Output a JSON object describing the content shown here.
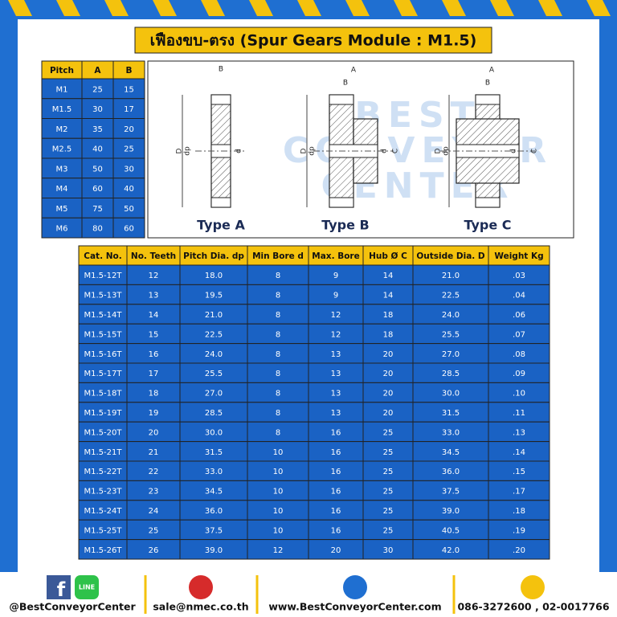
{
  "header": {
    "title": "เฟืองขบ-ตรง (Spur Gears Module : M1.5)"
  },
  "pitch_table": {
    "columns": [
      "Pitch",
      "A",
      "B"
    ],
    "rows": [
      [
        "M1",
        "25",
        "15"
      ],
      [
        "M1.5",
        "30",
        "17"
      ],
      [
        "M2",
        "35",
        "20"
      ],
      [
        "M2.5",
        "40",
        "25"
      ],
      [
        "M3",
        "50",
        "30"
      ],
      [
        "M4",
        "60",
        "40"
      ],
      [
        "M5",
        "75",
        "50"
      ],
      [
        "M6",
        "80",
        "60"
      ]
    ]
  },
  "diagram": {
    "watermark": [
      "BEST",
      "CONVEYOR",
      "CENTER"
    ],
    "types": [
      {
        "label": "Type A",
        "dims": [
          "B",
          "D",
          "dp",
          "d"
        ]
      },
      {
        "label": "Type B",
        "dims": [
          "A",
          "B",
          "D",
          "dp",
          "d",
          "C"
        ]
      },
      {
        "label": "Type C",
        "dims": [
          "A",
          "B",
          "D",
          "dp",
          "d",
          "C"
        ]
      }
    ]
  },
  "spec_table": {
    "columns": [
      "Cat. No.",
      "No. Teeth",
      "Pitch Dia. dp",
      "Min Bore d",
      "Max. Bore",
      "Hub Ø C",
      "Outside Dia. D",
      "Weight Kg"
    ],
    "rows": [
      [
        "M1.5-12T",
        "12",
        "18.0",
        "8",
        "9",
        "14",
        "21.0",
        ".03"
      ],
      [
        "M1.5-13T",
        "13",
        "19.5",
        "8",
        "9",
        "14",
        "22.5",
        ".04"
      ],
      [
        "M1.5-14T",
        "14",
        "21.0",
        "8",
        "12",
        "18",
        "24.0",
        ".06"
      ],
      [
        "M1.5-15T",
        "15",
        "22.5",
        "8",
        "12",
        "18",
        "25.5",
        ".07"
      ],
      [
        "M1.5-16T",
        "16",
        "24.0",
        "8",
        "13",
        "20",
        "27.0",
        ".08"
      ],
      [
        "M1.5-17T",
        "17",
        "25.5",
        "8",
        "13",
        "20",
        "28.5",
        ".09"
      ],
      [
        "M1.5-18T",
        "18",
        "27.0",
        "8",
        "13",
        "20",
        "30.0",
        ".10"
      ],
      [
        "M1.5-19T",
        "19",
        "28.5",
        "8",
        "13",
        "20",
        "31.5",
        ".11"
      ],
      [
        "M1.5-20T",
        "20",
        "30.0",
        "8",
        "16",
        "25",
        "33.0",
        ".13"
      ],
      [
        "M1.5-21T",
        "21",
        "31.5",
        "10",
        "16",
        "25",
        "34.5",
        ".14"
      ],
      [
        "M1.5-22T",
        "22",
        "33.0",
        "10",
        "16",
        "25",
        "36.0",
        ".15"
      ],
      [
        "M1.5-23T",
        "23",
        "34.5",
        "10",
        "16",
        "25",
        "37.5",
        ".17"
      ],
      [
        "M1.5-24T",
        "24",
        "36.0",
        "10",
        "16",
        "25",
        "39.0",
        ".18"
      ],
      [
        "M1.5-25T",
        "25",
        "37.5",
        "10",
        "16",
        "25",
        "40.5",
        ".19"
      ],
      [
        "M1.5-26T",
        "26",
        "39.0",
        "12",
        "20",
        "30",
        "42.0",
        ".20"
      ]
    ]
  },
  "footer": {
    "line_icon": "LINE",
    "items": [
      "@BestConveyorCenter",
      "sale@nmec.co.th",
      "www.BestConveyorCenter.com",
      "086-3272600 , 02-0017766"
    ]
  }
}
